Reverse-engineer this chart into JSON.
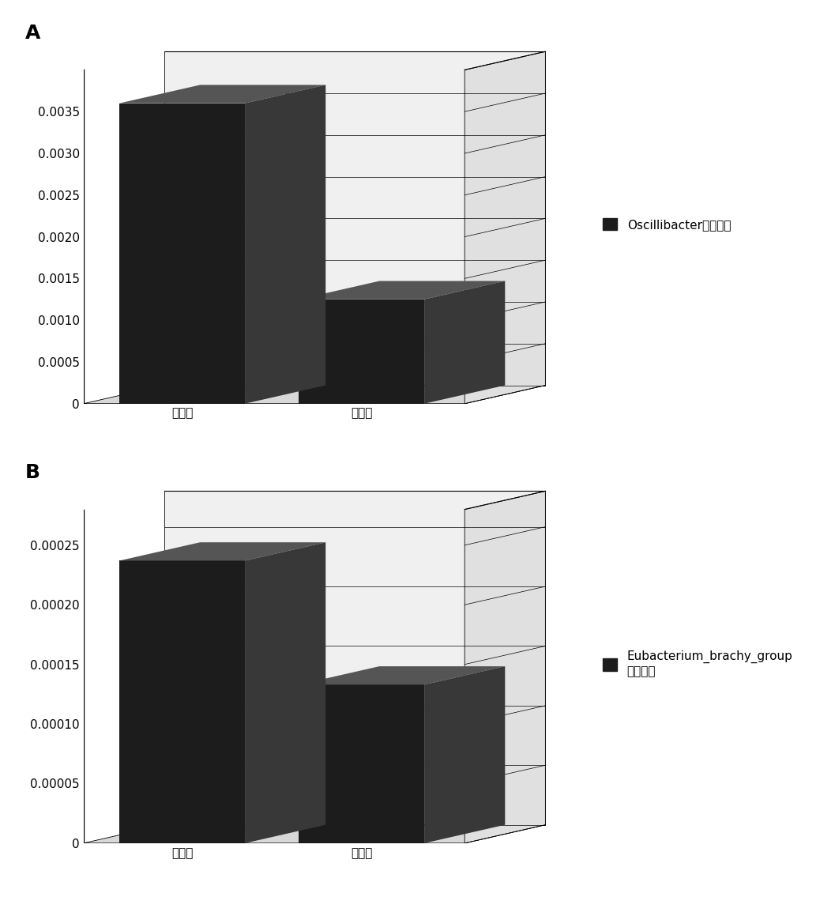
{
  "chart_A": {
    "categories": [
      "肌少症",
      "健康人"
    ],
    "values": [
      0.0036,
      0.00125
    ],
    "ylim": [
      0,
      0.004
    ],
    "yticks": [
      0,
      0.0005,
      0.001,
      0.0015,
      0.002,
      0.0025,
      0.003,
      0.0035
    ],
    "legend_label": "Oscillibacter相对丰度",
    "panel_label": "A"
  },
  "chart_B": {
    "categories": [
      "肌少症",
      "健康人"
    ],
    "values": [
      0.000237,
      0.000133
    ],
    "ylim": [
      0,
      0.00028
    ],
    "yticks": [
      0,
      5e-05,
      0.0001,
      0.00015,
      0.0002,
      0.00025
    ],
    "legend_label": "Eubacterium_brachy_group\n相对丰度",
    "panel_label": "B"
  },
  "bar_color_front": "#1c1c1c",
  "bar_color_top": "#555555",
  "bar_color_right": "#383838",
  "floor_color": "#d8d8d8",
  "background_color": "#ffffff",
  "font_size_tick": 11,
  "font_size_legend": 11,
  "font_size_panel": 18
}
